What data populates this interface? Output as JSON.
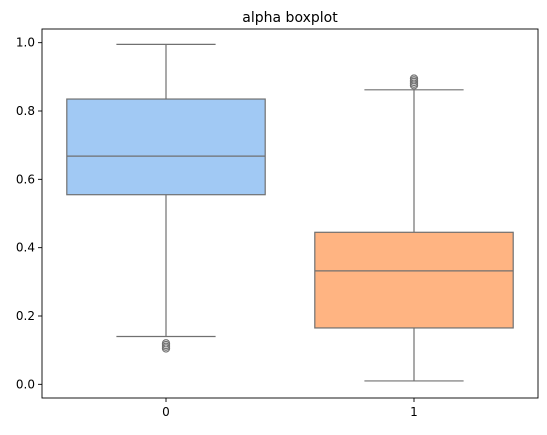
{
  "chart_data": {
    "type": "box",
    "title": "alpha boxplot",
    "xlabel": "",
    "ylabel": "",
    "categories": [
      "0",
      "1"
    ],
    "ylim": [
      -0.04,
      1.04
    ],
    "yticks": [
      0.0,
      0.2,
      0.4,
      0.6,
      0.8,
      1.0
    ],
    "ytick_labels": [
      "0.0",
      "0.2",
      "0.4",
      "0.6",
      "0.8",
      "1.0"
    ],
    "grid": false,
    "boxes": [
      {
        "category": "0",
        "whisker_low": 0.14,
        "q1": 0.555,
        "median": 0.668,
        "q3": 0.835,
        "whisker_high": 0.995,
        "outliers": [
          0.105,
          0.11,
          0.115,
          0.12
        ],
        "color": "#a1c9f4"
      },
      {
        "category": "1",
        "whisker_low": 0.01,
        "q1": 0.165,
        "median": 0.332,
        "q3": 0.445,
        "whisker_high": 0.862,
        "outliers": [
          0.875,
          0.88,
          0.885,
          0.89,
          0.895
        ],
        "color": "#ffb482"
      }
    ]
  }
}
